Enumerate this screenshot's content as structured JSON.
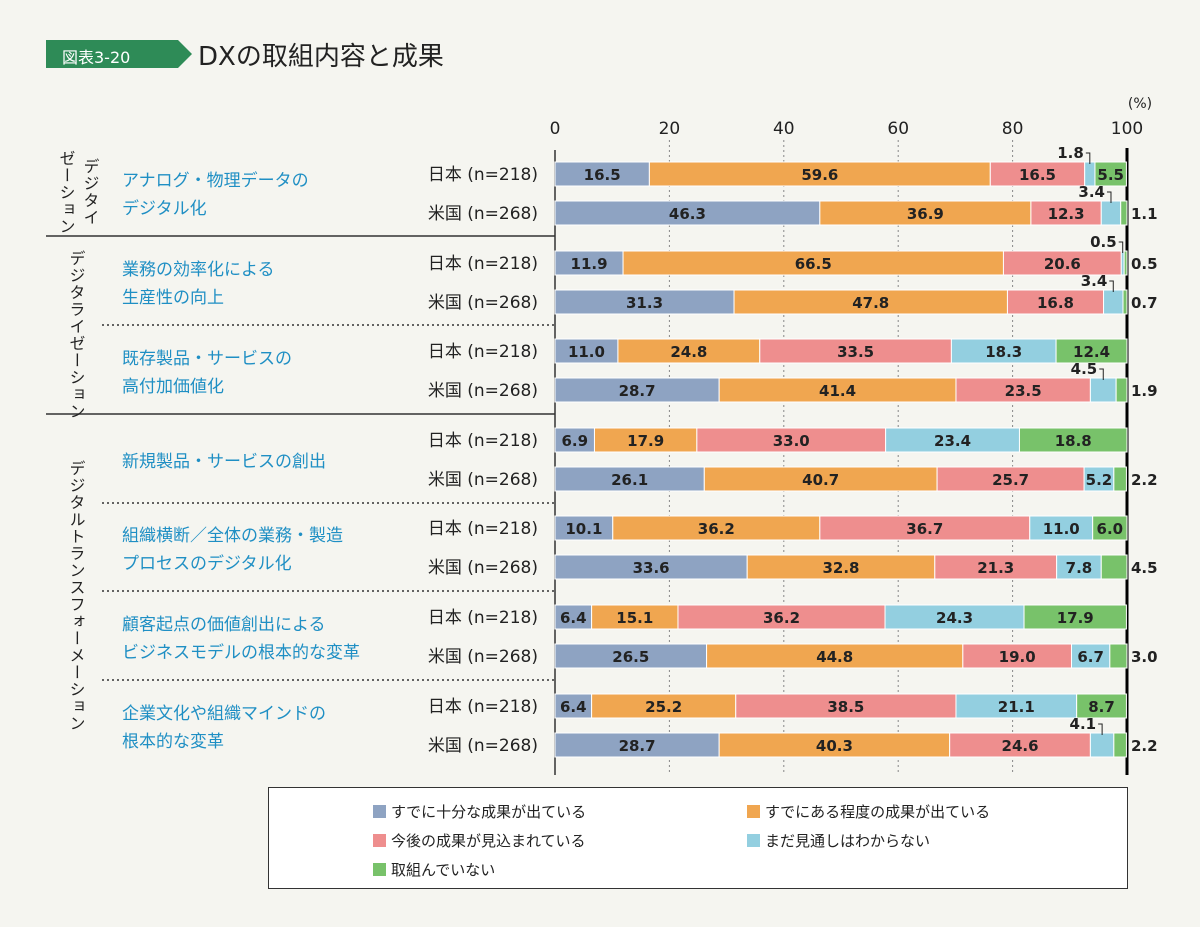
{
  "figure": {
    "label": "図表3-20",
    "title": "DXの取組内容と成果"
  },
  "chart_data": {
    "type": "stacked-bar-horizontal",
    "unit": "(%)",
    "xlim": [
      0,
      100
    ],
    "ticks": [
      0,
      20,
      40,
      60,
      80,
      100
    ],
    "series": [
      {
        "name": "すでに十分な成果が出ている",
        "color": "#8ea3c2"
      },
      {
        "name": "すでにある程度の成果が出ている",
        "color": "#f0a650"
      },
      {
        "name": "今後の成果が見込まれている",
        "color": "#ee8e8e"
      },
      {
        "name": "まだ見通しはわからない",
        "color": "#93cfe0"
      },
      {
        "name": "取組んでいない",
        "color": "#78c26a"
      }
    ],
    "categories": [
      {
        "label": [
          "アナログ・物理データの",
          "デジタル化"
        ],
        "group": 0,
        "rows": [
          {
            "country": "日本 (n=218)",
            "values": [
              16.5,
              59.6,
              16.5,
              1.8,
              5.5
            ],
            "labels": [
              "16.5",
              "59.6",
              "16.5",
              "1.8",
              "5.5"
            ]
          },
          {
            "country": "米国 (n=268)",
            "values": [
              46.3,
              36.9,
              12.3,
              3.4,
              1.1
            ],
            "labels": [
              "46.3",
              "36.9",
              "12.3",
              "3.4",
              "1.1"
            ]
          }
        ]
      },
      {
        "label": [
          "業務の効率化による",
          "生産性の向上"
        ],
        "group": 1,
        "rows": [
          {
            "country": "日本 (n=218)",
            "values": [
              11.9,
              66.5,
              20.6,
              0.5,
              0.5
            ],
            "labels": [
              "11.9",
              "66.5",
              "20.6",
              "0.5",
              "0.5"
            ]
          },
          {
            "country": "米国 (n=268)",
            "values": [
              31.3,
              47.8,
              16.8,
              3.4,
              0.7
            ],
            "labels": [
              "31.3",
              "47.8",
              "16.8",
              "3.4",
              "0.7"
            ]
          }
        ]
      },
      {
        "label": [
          "既存製品・サービスの",
          "高付加価値化"
        ],
        "group": 1,
        "rows": [
          {
            "country": "日本 (n=218)",
            "values": [
              11.0,
              24.8,
              33.5,
              18.3,
              12.4
            ],
            "labels": [
              "11.0",
              "24.8",
              "33.5",
              "18.3",
              "12.4"
            ]
          },
          {
            "country": "米国 (n=268)",
            "values": [
              28.7,
              41.4,
              23.5,
              4.5,
              1.9
            ],
            "labels": [
              "28.7",
              "41.4",
              "23.5",
              "4.5",
              "1.9"
            ]
          }
        ]
      },
      {
        "label": [
          "新規製品・サービスの創出"
        ],
        "group": 2,
        "rows": [
          {
            "country": "日本 (n=218)",
            "values": [
              6.9,
              17.9,
              33.0,
              23.4,
              18.8
            ],
            "labels": [
              "6.9",
              "17.9",
              "33.0",
              "23.4",
              "18.8"
            ]
          },
          {
            "country": "米国 (n=268)",
            "values": [
              26.1,
              40.7,
              25.7,
              5.2,
              2.2
            ],
            "labels": [
              "26.1",
              "40.7",
              "25.7",
              "5.2",
              "2.2"
            ]
          }
        ]
      },
      {
        "label": [
          "組織横断／全体の業務・製造",
          "プロセスのデジタル化"
        ],
        "group": 2,
        "rows": [
          {
            "country": "日本 (n=218)",
            "values": [
              10.1,
              36.2,
              36.7,
              11.0,
              6.0
            ],
            "labels": [
              "10.1",
              "36.2",
              "36.7",
              "11.0",
              "6.0"
            ]
          },
          {
            "country": "米国 (n=268)",
            "values": [
              33.6,
              32.8,
              21.3,
              7.8,
              4.5
            ],
            "labels": [
              "33.6",
              "32.8",
              "21.3",
              "7.8",
              "4.5"
            ]
          }
        ]
      },
      {
        "label": [
          "顧客起点の価値創出による",
          "ビジネスモデルの根本的な変革"
        ],
        "group": 2,
        "rows": [
          {
            "country": "日本 (n=218)",
            "values": [
              6.4,
              15.1,
              36.2,
              24.3,
              17.9
            ],
            "labels": [
              "6.4",
              "15.1",
              "36.2",
              "24.3",
              "17.9"
            ]
          },
          {
            "country": "米国 (n=268)",
            "values": [
              26.5,
              44.8,
              19.0,
              6.7,
              3.0
            ],
            "labels": [
              "26.5",
              "44.8",
              "19.0",
              "6.7",
              "3.0"
            ]
          }
        ]
      },
      {
        "label": [
          "企業文化や組織マインドの",
          "根本的な変革"
        ],
        "group": 2,
        "rows": [
          {
            "country": "日本 (n=218)",
            "values": [
              6.4,
              25.2,
              38.5,
              21.1,
              8.7
            ],
            "labels": [
              "6.4",
              "25.2",
              "38.5",
              "21.1",
              "8.7"
            ]
          },
          {
            "country": "米国 (n=268)",
            "values": [
              28.7,
              40.3,
              24.6,
              4.1,
              2.2
            ],
            "labels": [
              "28.7",
              "40.3",
              "24.6",
              "4.1",
              "2.2"
            ]
          }
        ]
      }
    ],
    "groups": [
      {
        "label": [
          "デジタイ",
          "ゼーション"
        ]
      },
      {
        "label": [
          "デジタライゼーション"
        ]
      },
      {
        "label": [
          "デジタルトランスフォーメーション"
        ]
      }
    ]
  },
  "legend": {
    "items": [
      "すでに十分な成果が出ている",
      "すでにある程度の成果が出ている",
      "今後の成果が見込まれている",
      "まだ見通しはわからない",
      "取組んでいない"
    ]
  }
}
